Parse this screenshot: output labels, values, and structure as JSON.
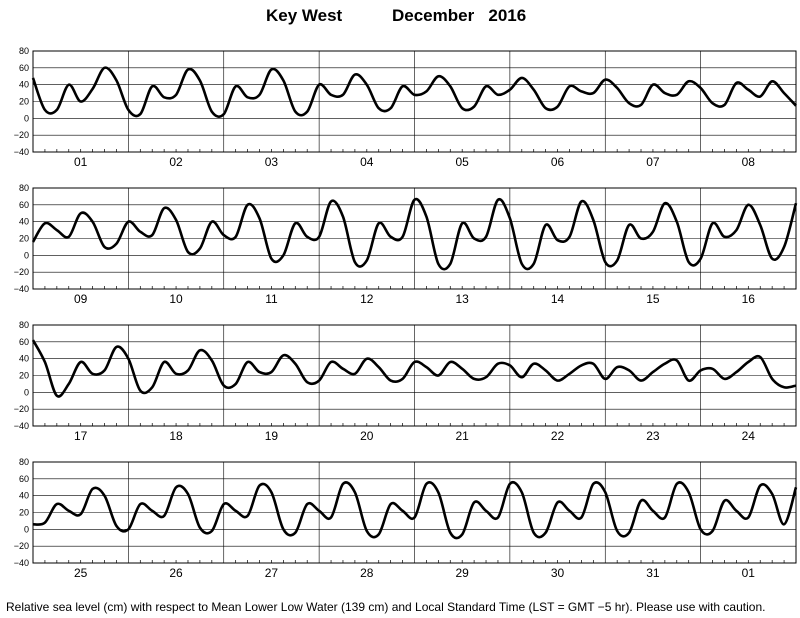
{
  "header": {
    "station": "Key West",
    "period": "December   2016"
  },
  "footnote": "Relative sea level (cm) with respect to Mean Lower Low Water (139 cm) and Local Standard Time (LST = GMT −5 hr). Please use with caution.",
  "colors": {
    "line": "#000000",
    "grid": "#000000",
    "background": "#ffffff"
  },
  "chart_data": [
    {
      "type": "line",
      "title": "",
      "xlabel": "",
      "ylabel": "",
      "ylim": [
        -40,
        80
      ],
      "yticks": [
        80,
        60,
        40,
        20,
        0,
        -20,
        -40
      ],
      "ytick_labels": [
        "80",
        "60",
        "40",
        "20",
        "0",
        "−20",
        "−40"
      ],
      "days": [
        "01",
        "02",
        "03",
        "04",
        "05",
        "06",
        "07",
        "08"
      ],
      "grid": true,
      "x": [
        0,
        0.125,
        0.25,
        0.375,
        0.5,
        0.625,
        0.75,
        0.875,
        1,
        1.125,
        1.25,
        1.375,
        1.5,
        1.625,
        1.75,
        1.875,
        2,
        2.125,
        2.25,
        2.375,
        2.5,
        2.625,
        2.75,
        2.875,
        3,
        3.125,
        3.25,
        3.375,
        3.5,
        3.625,
        3.75,
        3.875,
        4,
        4.125,
        4.25,
        4.375,
        4.5,
        4.625,
        4.75,
        4.875,
        5,
        5.125,
        5.25,
        5.375,
        5.5,
        5.625,
        5.75,
        5.875,
        6,
        6.125,
        6.25,
        6.375,
        6.5,
        6.625,
        6.75,
        6.875,
        7,
        7.125,
        7.25,
        7.375,
        7.5,
        7.625,
        7.75,
        7.875,
        8
      ],
      "values": [
        48,
        10,
        10,
        40,
        20,
        35,
        60,
        45,
        10,
        5,
        38,
        25,
        28,
        58,
        45,
        8,
        5,
        38,
        25,
        28,
        58,
        45,
        8,
        8,
        40,
        28,
        28,
        52,
        40,
        12,
        12,
        38,
        28,
        32,
        50,
        38,
        12,
        14,
        38,
        28,
        34,
        48,
        34,
        12,
        14,
        38,
        32,
        30,
        46,
        36,
        18,
        16,
        40,
        30,
        28,
        44,
        36,
        18,
        16,
        42,
        34,
        26,
        44,
        30,
        15
      ]
    },
    {
      "type": "line",
      "title": "",
      "xlabel": "",
      "ylabel": "",
      "ylim": [
        -40,
        80
      ],
      "yticks": [
        80,
        60,
        40,
        20,
        0,
        -20,
        -40
      ],
      "ytick_labels": [
        "80",
        "60",
        "40",
        "20",
        "0",
        "−20",
        "−40"
      ],
      "days": [
        "09",
        "10",
        "11",
        "12",
        "13",
        "14",
        "15",
        "16"
      ],
      "grid": true,
      "x": [
        0,
        0.125,
        0.25,
        0.375,
        0.5,
        0.625,
        0.75,
        0.875,
        1,
        1.125,
        1.25,
        1.375,
        1.5,
        1.625,
        1.75,
        1.875,
        2,
        2.125,
        2.25,
        2.375,
        2.5,
        2.625,
        2.75,
        2.875,
        3,
        3.125,
        3.25,
        3.375,
        3.5,
        3.625,
        3.75,
        3.875,
        4,
        4.125,
        4.25,
        4.375,
        4.5,
        4.625,
        4.75,
        4.875,
        5,
        5.125,
        5.25,
        5.375,
        5.5,
        5.625,
        5.75,
        5.875,
        6,
        6.125,
        6.25,
        6.375,
        6.5,
        6.625,
        6.75,
        6.875,
        7,
        7.125,
        7.25,
        7.375,
        7.5,
        7.625,
        7.75,
        7.875,
        8
      ],
      "values": [
        16,
        38,
        30,
        22,
        50,
        40,
        10,
        14,
        40,
        28,
        24,
        56,
        42,
        4,
        8,
        40,
        24,
        22,
        60,
        44,
        -4,
        0,
        38,
        22,
        22,
        64,
        46,
        -8,
        -6,
        38,
        22,
        22,
        66,
        46,
        -10,
        -10,
        38,
        20,
        22,
        66,
        44,
        -10,
        -10,
        36,
        18,
        22,
        64,
        42,
        -8,
        -6,
        36,
        20,
        28,
        62,
        40,
        -8,
        -4,
        38,
        22,
        30,
        60,
        36,
        -4,
        10,
        62
      ]
    },
    {
      "type": "line",
      "title": "",
      "xlabel": "",
      "ylabel": "",
      "ylim": [
        -40,
        80
      ],
      "yticks": [
        80,
        60,
        40,
        20,
        0,
        -20,
        -40
      ],
      "ytick_labels": [
        "80",
        "60",
        "40",
        "20",
        "0",
        "−20",
        "−40"
      ],
      "days": [
        "17",
        "18",
        "19",
        "20",
        "21",
        "22",
        "23",
        "24"
      ],
      "grid": true,
      "x": [
        0,
        0.125,
        0.25,
        0.375,
        0.5,
        0.625,
        0.75,
        0.875,
        1,
        1.125,
        1.25,
        1.375,
        1.5,
        1.625,
        1.75,
        1.875,
        2,
        2.125,
        2.25,
        2.375,
        2.5,
        2.625,
        2.75,
        2.875,
        3,
        3.125,
        3.25,
        3.375,
        3.5,
        3.625,
        3.75,
        3.875,
        4,
        4.125,
        4.25,
        4.375,
        4.5,
        4.625,
        4.75,
        4.875,
        5,
        5.125,
        5.25,
        5.375,
        5.5,
        5.625,
        5.75,
        5.875,
        6,
        6.125,
        6.25,
        6.375,
        6.5,
        6.625,
        6.75,
        6.875,
        7,
        7.125,
        7.25,
        7.375,
        7.5,
        7.625,
        7.75,
        7.875,
        8
      ],
      "values": [
        62,
        36,
        -4,
        10,
        36,
        22,
        26,
        54,
        40,
        2,
        6,
        36,
        22,
        26,
        50,
        38,
        8,
        10,
        36,
        24,
        24,
        44,
        34,
        12,
        14,
        36,
        28,
        22,
        40,
        30,
        14,
        16,
        36,
        30,
        20,
        36,
        28,
        16,
        18,
        34,
        32,
        18,
        34,
        26,
        14,
        22,
        32,
        34,
        16,
        30,
        26,
        14,
        24,
        34,
        38,
        14,
        26,
        28,
        16,
        24,
        36,
        42,
        16,
        6,
        8
      ]
    },
    {
      "type": "line",
      "title": "",
      "xlabel": "",
      "ylabel": "",
      "ylim": [
        -40,
        80
      ],
      "yticks": [
        80,
        60,
        40,
        20,
        0,
        -20,
        -40
      ],
      "ytick_labels": [
        "80",
        "60",
        "40",
        "20",
        "0",
        "−20",
        "−40"
      ],
      "days": [
        "25",
        "26",
        "27",
        "28",
        "29",
        "30",
        "31",
        "01"
      ],
      "grid": true,
      "x": [
        0,
        0.125,
        0.25,
        0.375,
        0.5,
        0.625,
        0.75,
        0.875,
        1,
        1.125,
        1.25,
        1.375,
        1.5,
        1.625,
        1.75,
        1.875,
        2,
        2.125,
        2.25,
        2.375,
        2.5,
        2.625,
        2.75,
        2.875,
        3,
        3.125,
        3.25,
        3.375,
        3.5,
        3.625,
        3.75,
        3.875,
        4,
        4.125,
        4.25,
        4.375,
        4.5,
        4.625,
        4.75,
        4.875,
        5,
        5.125,
        5.25,
        5.375,
        5.5,
        5.625,
        5.75,
        5.875,
        6,
        6.125,
        6.25,
        6.375,
        6.5,
        6.625,
        6.75,
        6.875,
        7,
        7.125,
        7.25,
        7.375,
        7.5,
        7.625,
        7.75,
        7.875,
        8
      ],
      "values": [
        6,
        8,
        30,
        22,
        18,
        48,
        40,
        4,
        0,
        30,
        22,
        16,
        50,
        42,
        2,
        -2,
        30,
        22,
        16,
        52,
        44,
        0,
        -4,
        30,
        22,
        14,
        54,
        44,
        -2,
        -6,
        30,
        22,
        14,
        54,
        44,
        -4,
        -6,
        32,
        22,
        14,
        54,
        44,
        -4,
        -4,
        32,
        22,
        14,
        54,
        44,
        -2,
        -4,
        34,
        22,
        14,
        54,
        44,
        0,
        -2,
        34,
        22,
        14,
        52,
        42,
        6,
        50
      ]
    }
  ]
}
